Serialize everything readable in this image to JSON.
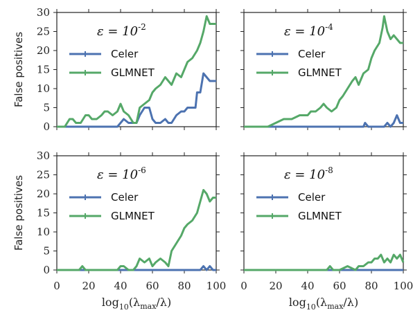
{
  "chart_data": [
    {
      "type": "line",
      "panel": "top-left",
      "annotation": "ε = 10^-2",
      "ylabel": "False positives",
      "xlabel": "",
      "xlim": [
        0,
        100
      ],
      "ylim": [
        0,
        30
      ],
      "xticks": [
        "0",
        "20",
        "40",
        "60",
        "80",
        "100"
      ],
      "yticks": [
        "0",
        "5",
        "10",
        "15",
        "20",
        "25",
        "30"
      ],
      "legend": "upper-left",
      "series": [
        {
          "name": "Celer",
          "color": "#4c72b0",
          "x": [
            0,
            10,
            20,
            30,
            35,
            38,
            40,
            42,
            45,
            48,
            50,
            52,
            55,
            58,
            60,
            62,
            65,
            68,
            70,
            72,
            75,
            78,
            80,
            82,
            85,
            87,
            88,
            90,
            92,
            94,
            96,
            98,
            100
          ],
          "y": [
            0,
            0,
            0,
            0,
            0,
            0,
            1,
            2,
            1,
            1,
            1,
            3,
            5,
            5,
            2,
            1,
            1,
            2,
            1,
            1,
            3,
            4,
            4,
            5,
            5,
            5,
            9,
            9,
            14,
            13,
            12,
            12,
            12
          ]
        },
        {
          "name": "GLMNET",
          "color": "#55a868",
          "x": [
            0,
            5,
            8,
            10,
            12,
            15,
            18,
            20,
            22,
            25,
            28,
            30,
            32,
            35,
            38,
            40,
            42,
            45,
            48,
            50,
            52,
            55,
            58,
            60,
            62,
            65,
            68,
            70,
            72,
            75,
            78,
            80,
            82,
            85,
            88,
            90,
            92,
            94,
            96,
            98,
            100
          ],
          "y": [
            0,
            0,
            2,
            2,
            1,
            1,
            3,
            3,
            2,
            2,
            3,
            4,
            4,
            3,
            4,
            6,
            4,
            3,
            1,
            1,
            5,
            6,
            7,
            9,
            10,
            11,
            13,
            12,
            11,
            14,
            13,
            15,
            17,
            18,
            20,
            22,
            25,
            29,
            27,
            27,
            27
          ]
        }
      ]
    },
    {
      "type": "line",
      "panel": "top-right",
      "annotation": "ε = 10^-4",
      "ylabel": "",
      "xlabel": "",
      "xlim": [
        0,
        100
      ],
      "ylim": [
        0,
        30
      ],
      "xticks": [
        "0",
        "20",
        "40",
        "60",
        "80",
        "100"
      ],
      "yticks": [
        "0",
        "5",
        "10",
        "15",
        "20",
        "25",
        "30"
      ],
      "legend": "upper-left",
      "series": [
        {
          "name": "Celer",
          "color": "#4c72b0",
          "x": [
            0,
            20,
            40,
            60,
            75,
            76,
            78,
            80,
            85,
            88,
            90,
            92,
            94,
            96,
            98,
            100
          ],
          "y": [
            0,
            0,
            0,
            0,
            0,
            1,
            0,
            0,
            0,
            0,
            1,
            0,
            1,
            3,
            1,
            1
          ]
        },
        {
          "name": "GLMNET",
          "color": "#55a868",
          "x": [
            0,
            10,
            15,
            20,
            25,
            30,
            35,
            40,
            42,
            45,
            48,
            50,
            52,
            55,
            58,
            60,
            62,
            65,
            68,
            70,
            72,
            75,
            78,
            80,
            82,
            85,
            87,
            88,
            90,
            92,
            94,
            96,
            98,
            100
          ],
          "y": [
            0,
            0,
            0,
            1,
            2,
            2,
            3,
            3,
            4,
            4,
            5,
            6,
            5,
            4,
            5,
            7,
            8,
            10,
            12,
            13,
            11,
            14,
            15,
            18,
            20,
            22,
            26,
            29,
            25,
            23,
            24,
            23,
            22,
            22
          ]
        }
      ]
    },
    {
      "type": "line",
      "panel": "bottom-left",
      "annotation": "ε = 10^-6",
      "ylabel": "False positives",
      "xlabel": "log10(λmax/λ)",
      "xlim": [
        0,
        100
      ],
      "ylim": [
        0,
        30
      ],
      "xticks": [
        "0",
        "20",
        "40",
        "60",
        "80",
        "100"
      ],
      "yticks": [
        "0",
        "5",
        "10",
        "15",
        "20",
        "25",
        "30"
      ],
      "legend": "upper-left",
      "series": [
        {
          "name": "Celer",
          "color": "#4c72b0",
          "x": [
            0,
            20,
            40,
            60,
            80,
            90,
            92,
            94,
            96,
            98,
            100
          ],
          "y": [
            0,
            0,
            0,
            0,
            0,
            0,
            1,
            0,
            1,
            0,
            0
          ]
        },
        {
          "name": "GLMNET",
          "color": "#55a868",
          "x": [
            0,
            10,
            14,
            16,
            18,
            20,
            30,
            38,
            40,
            42,
            45,
            48,
            50,
            52,
            55,
            58,
            60,
            62,
            65,
            68,
            70,
            72,
            75,
            78,
            80,
            82,
            85,
            88,
            90,
            92,
            94,
            96,
            98,
            100
          ],
          "y": [
            0,
            0,
            0,
            1,
            0,
            0,
            0,
            0,
            1,
            1,
            0,
            0,
            1,
            3,
            2,
            3,
            1,
            2,
            3,
            2,
            1,
            5,
            7,
            9,
            11,
            12,
            13,
            15,
            18,
            21,
            20,
            18,
            19,
            19
          ]
        }
      ]
    },
    {
      "type": "line",
      "panel": "bottom-right",
      "annotation": "ε = 10^-8",
      "ylabel": "",
      "xlabel": "log10(λmax/λ)",
      "xlim": [
        0,
        100
      ],
      "ylim": [
        0,
        30
      ],
      "xticks": [
        "0",
        "20",
        "40",
        "60",
        "80",
        "100"
      ],
      "yticks": [
        "0",
        "5",
        "10",
        "15",
        "20",
        "25",
        "30"
      ],
      "legend": "upper-left",
      "series": [
        {
          "name": "Celer",
          "color": "#4c72b0",
          "x": [
            0,
            20,
            40,
            60,
            80,
            100
          ],
          "y": [
            0,
            0,
            0,
            0,
            0,
            0
          ]
        },
        {
          "name": "GLMNET",
          "color": "#55a868",
          "x": [
            0,
            20,
            40,
            50,
            52,
            54,
            56,
            60,
            65,
            70,
            72,
            75,
            78,
            80,
            82,
            84,
            86,
            88,
            90,
            92,
            94,
            96,
            98,
            100
          ],
          "y": [
            0,
            0,
            0,
            0,
            0,
            1,
            0,
            0,
            1,
            0,
            1,
            1,
            2,
            2,
            3,
            3,
            4,
            2,
            3,
            2,
            4,
            3,
            4,
            2
          ]
        }
      ]
    }
  ]
}
